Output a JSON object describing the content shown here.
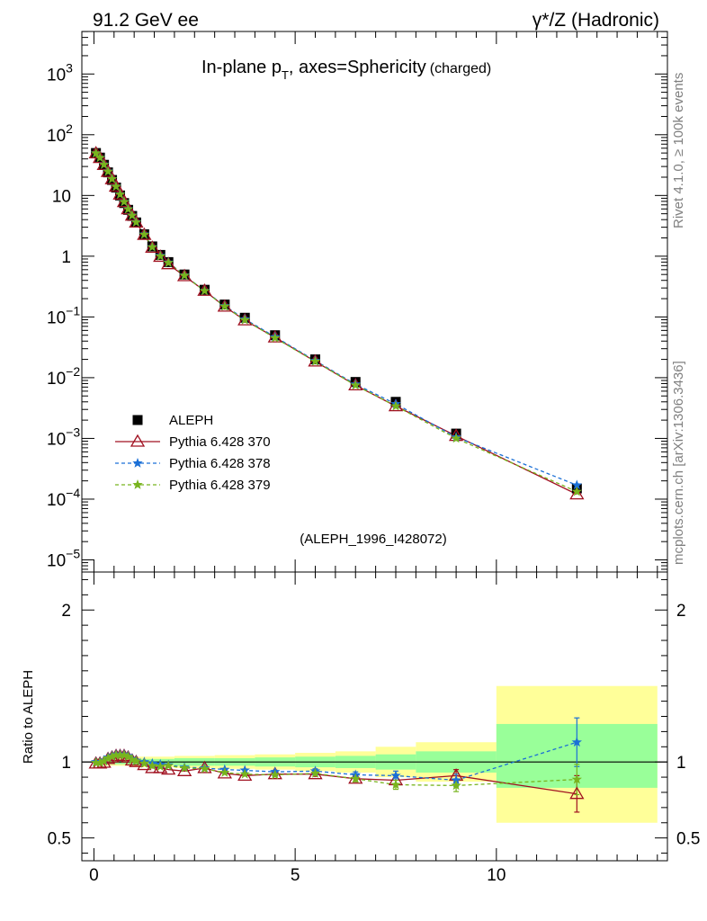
{
  "header": {
    "left": "91.2 GeV ee",
    "right": "γ*/Z (Hadronic)"
  },
  "side_labels": {
    "rivet": "Rivet 4.1.0, ≥ 100k events",
    "mcplots": "mcplots.cern.ch [arXiv:1306.3436]"
  },
  "chart_data": [
    {
      "type": "scatter",
      "panel": "main",
      "title": "In-plane p_T, axes=Sphericity (charged)",
      "title_main": "In-plane p",
      "title_sub": "T",
      "title_rest": ", axes=Sphericity",
      "title_note": "(charged)",
      "analysis_label": "(ALEPH_1996_I428072)",
      "yscale": "log",
      "xlim": [
        -0.3,
        14.25
      ],
      "ylim_exp": [
        -5.2,
        3.7
      ],
      "ytick_labels": [
        {
          "exp": 3,
          "base": "10",
          "sup": "3"
        },
        {
          "exp": 2,
          "base": "10",
          "sup": "2"
        },
        {
          "exp": 1,
          "base": "10",
          "sup": ""
        },
        {
          "exp": 0,
          "base": "1",
          "sup": ""
        },
        {
          "exp": -1,
          "base": "10",
          "sup": "−1"
        },
        {
          "exp": -2,
          "base": "10",
          "sup": "−2"
        },
        {
          "exp": -3,
          "base": "10",
          "sup": "−3"
        },
        {
          "exp": -4,
          "base": "10",
          "sup": "−4"
        },
        {
          "exp": -5,
          "base": "10",
          "sup": "−5"
        }
      ],
      "x": [
        0.05,
        0.15,
        0.25,
        0.35,
        0.45,
        0.55,
        0.65,
        0.75,
        0.85,
        0.95,
        1.05,
        1.25,
        1.45,
        1.65,
        1.85,
        2.25,
        2.75,
        3.25,
        3.75,
        4.5,
        5.5,
        6.5,
        7.5,
        9.0,
        12.0
      ],
      "legend": [
        {
          "name": "ALEPH",
          "marker": "square",
          "color": "#000000"
        },
        {
          "name": "Pythia 6.428 370",
          "marker": "triangle",
          "color": "#a01020"
        },
        {
          "name": "Pythia 6.428 378",
          "marker": "star",
          "color": "#1a6fd6"
        },
        {
          "name": "Pythia 6.428 379",
          "marker": "star",
          "color": "#78b41e"
        }
      ],
      "series": [
        {
          "name": "ALEPH",
          "values": [
            50,
            42,
            32,
            24,
            18,
            13.5,
            10,
            7.5,
            5.8,
            4.6,
            3.6,
            2.3,
            1.45,
            1.05,
            0.8,
            0.5,
            0.28,
            0.16,
            0.097,
            0.05,
            0.02,
            0.0085,
            0.004,
            0.0012,
            0.00015
          ]
        },
        {
          "name": "Pythia 6.428 370",
          "values": [
            49.5,
            41.5,
            31.8,
            24.5,
            18.5,
            14,
            10.4,
            7.8,
            5.95,
            4.65,
            3.6,
            2.25,
            1.38,
            0.98,
            0.74,
            0.47,
            0.27,
            0.148,
            0.088,
            0.046,
            0.0185,
            0.0075,
            0.0034,
            0.0011,
            0.00012
          ]
        },
        {
          "name": "Pythia 6.428 378",
          "values": [
            49.8,
            42,
            32.5,
            25,
            18.8,
            14.1,
            10.5,
            7.9,
            6.0,
            4.7,
            3.65,
            2.3,
            1.42,
            1.02,
            0.79,
            0.485,
            0.27,
            0.152,
            0.092,
            0.047,
            0.019,
            0.0078,
            0.0037,
            0.00105,
            0.00017
          ]
        },
        {
          "name": "Pythia 6.428 379",
          "values": [
            49.6,
            41.8,
            32.2,
            24.8,
            18.7,
            14.0,
            10.4,
            7.85,
            5.95,
            4.68,
            3.62,
            2.27,
            1.41,
            1.0,
            0.78,
            0.48,
            0.268,
            0.149,
            0.089,
            0.045,
            0.0185,
            0.0075,
            0.0034,
            0.001,
            0.000133
          ]
        }
      ]
    },
    {
      "type": "scatter",
      "panel": "ratio",
      "ylabel": "Ratio to ALEPH",
      "ylim": [
        0.35,
        2.25
      ],
      "ytick_labels": [
        {
          "value": 2,
          "label": "2"
        },
        {
          "value": 1,
          "label": "1"
        },
        {
          "value": 0.5,
          "label": "0.5"
        }
      ],
      "xtick_labels": [
        {
          "value": 0,
          "label": "0"
        },
        {
          "value": 5,
          "label": "5"
        },
        {
          "value": 10,
          "label": "10"
        }
      ],
      "reference_line": 1,
      "bands": [
        {
          "x0": 0.0,
          "x1": 1.0,
          "inner": [
            0.985,
            1.015
          ],
          "outer": [
            0.975,
            1.025
          ]
        },
        {
          "x0": 1.0,
          "x1": 2.0,
          "inner": [
            0.98,
            1.02
          ],
          "outer": [
            0.965,
            1.035
          ]
        },
        {
          "x0": 2.0,
          "x1": 3.0,
          "inner": [
            0.975,
            1.025
          ],
          "outer": [
            0.96,
            1.04
          ]
        },
        {
          "x0": 3.0,
          "x1": 4.0,
          "inner": [
            0.975,
            1.025
          ],
          "outer": [
            0.955,
            1.045
          ]
        },
        {
          "x0": 4.0,
          "x1": 5.0,
          "inner": [
            0.97,
            1.03
          ],
          "outer": [
            0.95,
            1.05
          ]
        },
        {
          "x0": 5.0,
          "x1": 6.0,
          "inner": [
            0.965,
            1.035
          ],
          "outer": [
            0.94,
            1.06
          ]
        },
        {
          "x0": 6.0,
          "x1": 7.0,
          "inner": [
            0.96,
            1.04
          ],
          "outer": [
            0.93,
            1.07
          ]
        },
        {
          "x0": 7.0,
          "x1": 8.0,
          "inner": [
            0.95,
            1.05
          ],
          "outer": [
            0.9,
            1.1
          ]
        },
        {
          "x0": 8.0,
          "x1": 10.0,
          "inner": [
            0.93,
            1.07
          ],
          "outer": [
            0.87,
            1.13
          ]
        },
        {
          "x0": 10.0,
          "x1": 14.0,
          "inner": [
            0.83,
            1.25
          ],
          "outer": [
            0.6,
            1.5
          ]
        }
      ],
      "x": [
        0.05,
        0.15,
        0.25,
        0.35,
        0.45,
        0.55,
        0.65,
        0.75,
        0.85,
        0.95,
        1.05,
        1.25,
        1.45,
        1.65,
        1.85,
        2.25,
        2.75,
        3.25,
        3.75,
        4.5,
        5.5,
        6.5,
        7.5,
        9.0,
        12.0
      ],
      "series": [
        {
          "name": "Pythia 6.428 370",
          "values": [
            0.99,
            0.99,
            0.995,
            1.02,
            1.03,
            1.04,
            1.04,
            1.04,
            1.03,
            1.01,
            1.0,
            0.98,
            0.96,
            0.96,
            0.95,
            0.94,
            0.96,
            0.925,
            0.91,
            0.92,
            0.92,
            0.89,
            0.88,
            0.91,
            0.79
          ],
          "errors": [
            0,
            0,
            0,
            0,
            0,
            0,
            0,
            0,
            0,
            0,
            0,
            0,
            0,
            0,
            0,
            0,
            0,
            0,
            0,
            0.01,
            0.015,
            0.02,
            0.03,
            0.04,
            0.12
          ]
        },
        {
          "name": "Pythia 6.428 378",
          "values": [
            1.0,
            1.0,
            1.01,
            1.03,
            1.04,
            1.05,
            1.05,
            1.05,
            1.04,
            1.02,
            1.01,
            1.0,
            0.99,
            0.985,
            0.98,
            0.965,
            0.96,
            0.95,
            0.945,
            0.935,
            0.94,
            0.915,
            0.91,
            0.88,
            1.13
          ],
          "errors": [
            0,
            0,
            0,
            0,
            0,
            0,
            0,
            0,
            0,
            0,
            0,
            0,
            0,
            0,
            0,
            0,
            0,
            0,
            0,
            0.01,
            0.015,
            0.02,
            0.03,
            0.04,
            0.16
          ]
        },
        {
          "name": "Pythia 6.428 379",
          "values": [
            0.995,
            0.995,
            1.005,
            1.025,
            1.035,
            1.045,
            1.045,
            1.045,
            1.035,
            1.015,
            1.005,
            0.99,
            0.975,
            0.97,
            0.975,
            0.96,
            0.955,
            0.93,
            0.92,
            0.915,
            0.925,
            0.89,
            0.85,
            0.845,
            0.885
          ],
          "errors": [
            0,
            0,
            0,
            0,
            0,
            0,
            0,
            0,
            0,
            0,
            0,
            0,
            0,
            0,
            0,
            0,
            0,
            0,
            0,
            0.01,
            0.015,
            0.02,
            0.03,
            0.04,
            0.1
          ]
        }
      ]
    }
  ]
}
